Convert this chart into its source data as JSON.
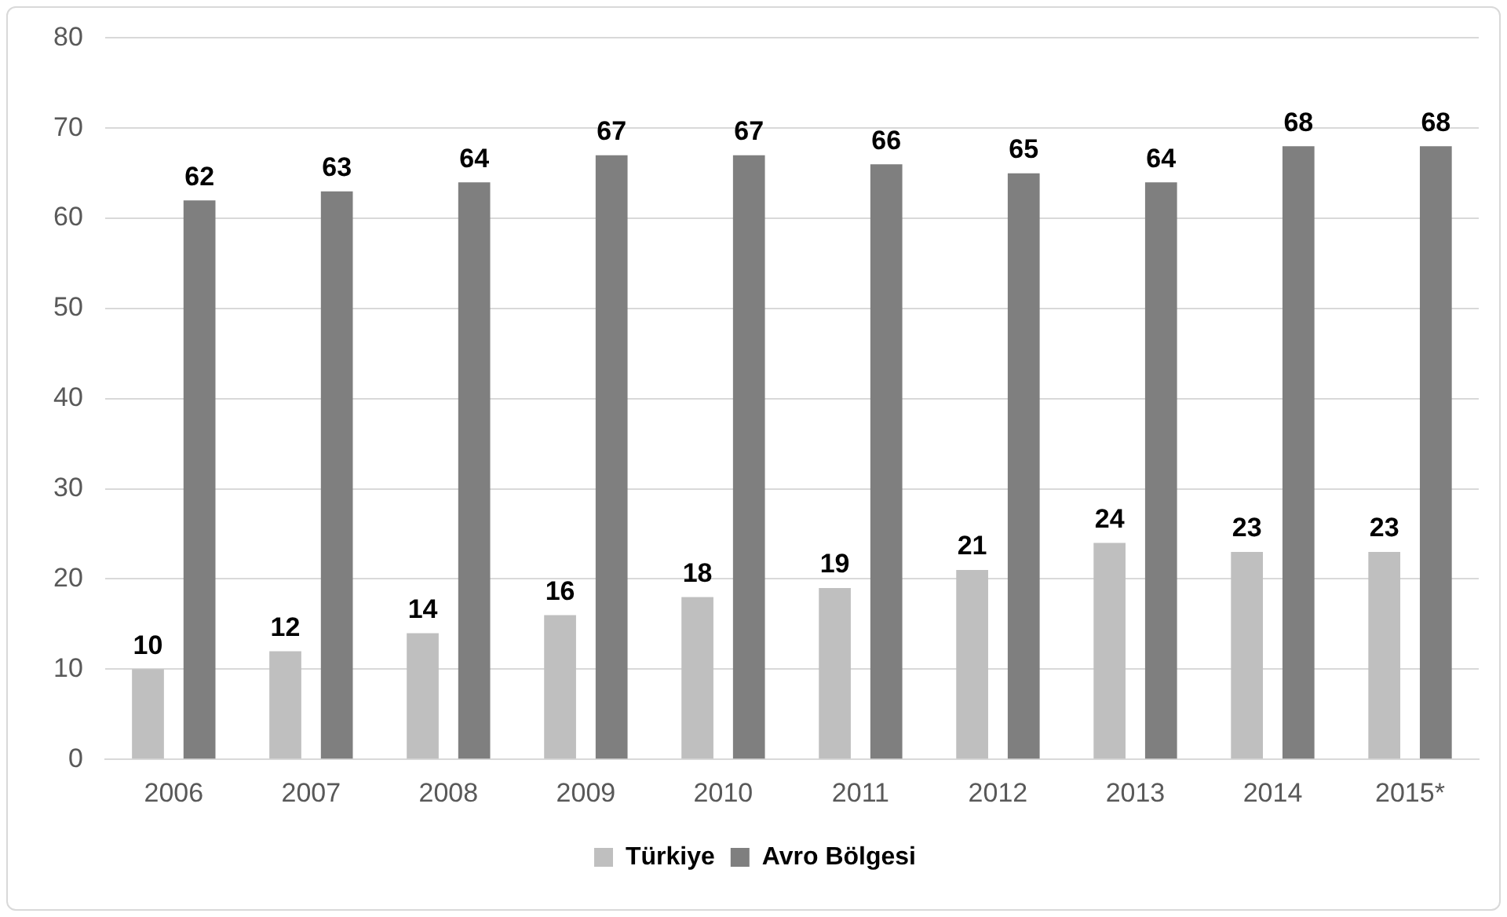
{
  "chart_data": {
    "type": "bar",
    "categories": [
      "2006",
      "2007",
      "2008",
      "2009",
      "2010",
      "2011",
      "2012",
      "2013",
      "2014",
      "2015*"
    ],
    "series": [
      {
        "name": "Türkiye",
        "color": "#bfbfbf",
        "values": [
          10,
          12,
          14,
          16,
          18,
          19,
          21,
          24,
          23,
          23
        ]
      },
      {
        "name": "Avro Bölgesi",
        "color": "#7f7f7f",
        "values": [
          62,
          63,
          64,
          67,
          67,
          66,
          65,
          64,
          68,
          68
        ]
      }
    ],
    "ylim": [
      0,
      80
    ],
    "yticks": [
      0,
      10,
      20,
      30,
      40,
      50,
      60,
      70,
      80
    ],
    "grid": "y",
    "legend": "bottom",
    "data_labels": true
  }
}
